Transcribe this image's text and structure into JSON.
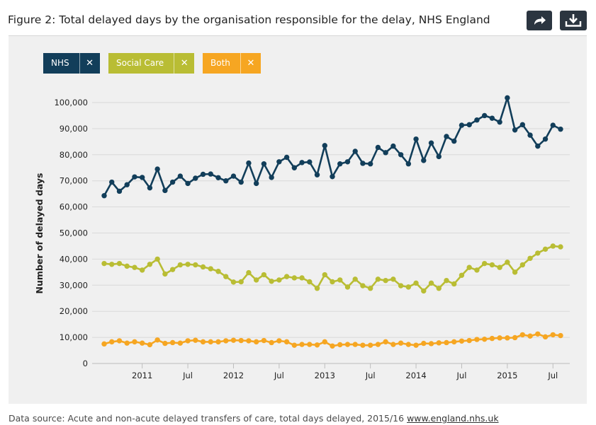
{
  "header": {
    "title": "Figure 2: Total delayed days by the organisation responsible for the delay, NHS England",
    "share_icon": "share-arrow-icon",
    "download_icon": "download-icon"
  },
  "legend": [
    {
      "label": "NHS",
      "remove": "✕",
      "color": "#123e5a"
    },
    {
      "label": "Social Care",
      "remove": "✕",
      "color": "#b9bd34"
    },
    {
      "label": "Both",
      "remove": "✕",
      "color": "#f6a622"
    }
  ],
  "chart_data": {
    "type": "line",
    "ylabel": "Number of delayed days",
    "ylim": [
      0,
      100000
    ],
    "yticks": [
      0,
      10000,
      20000,
      30000,
      40000,
      50000,
      60000,
      70000,
      80000,
      90000,
      100000
    ],
    "ytick_labels": [
      "0",
      "10,000",
      "20,000",
      "30,000",
      "40,000",
      "50,000",
      "60,000",
      "70,000",
      "80,000",
      "90,000",
      "100,000"
    ],
    "x_start": "Aug 2010",
    "x_end": "Aug 2015",
    "xticks": [
      {
        "label": "2011",
        "index": 5
      },
      {
        "label": "Jul",
        "index": 11
      },
      {
        "label": "2012",
        "index": 17
      },
      {
        "label": "Jul",
        "index": 23
      },
      {
        "label": "2013",
        "index": 29
      },
      {
        "label": "Jul",
        "index": 35
      },
      {
        "label": "2014",
        "index": 41
      },
      {
        "label": "Jul",
        "index": 47
      },
      {
        "label": "2015",
        "index": 53
      },
      {
        "label": "Jul",
        "index": 59
      }
    ],
    "series": [
      {
        "name": "NHS",
        "color": "#123e5a",
        "values": [
          64300,
          69500,
          66000,
          68500,
          71500,
          71300,
          67300,
          74500,
          66300,
          69500,
          71800,
          69000,
          71000,
          72500,
          72600,
          71200,
          70000,
          71800,
          69500,
          76800,
          69000,
          76500,
          71300,
          77300,
          79000,
          75000,
          77000,
          77200,
          72300,
          83500,
          71600,
          76500,
          77300,
          81300,
          76700,
          76500,
          82800,
          80800,
          83300,
          80000,
          76500,
          86000,
          77800,
          84500,
          79300,
          87000,
          85200,
          91300,
          91500,
          93300,
          95000,
          94000,
          92500,
          101800,
          89500,
          91500,
          87500,
          83300,
          86000,
          91300,
          89800
        ]
      },
      {
        "name": "Social Care",
        "color": "#b9bd34",
        "values": [
          38300,
          38000,
          38300,
          37300,
          36800,
          35800,
          38000,
          40000,
          34300,
          36000,
          37800,
          38000,
          37800,
          37000,
          36300,
          35300,
          33300,
          31200,
          31300,
          34800,
          32000,
          34000,
          31500,
          32000,
          33300,
          32800,
          32800,
          31300,
          28800,
          34000,
          31300,
          32000,
          29300,
          32300,
          29800,
          28800,
          32300,
          31800,
          32300,
          29800,
          29300,
          30800,
          27800,
          30800,
          28800,
          31800,
          30500,
          33800,
          36800,
          35800,
          38300,
          37800,
          36800,
          38800,
          35000,
          37800,
          40300,
          42300,
          43800,
          45000,
          44700
        ]
      },
      {
        "name": "Both",
        "color": "#f6a622",
        "values": [
          7500,
          8300,
          8700,
          7800,
          8300,
          7800,
          7200,
          9000,
          7700,
          8000,
          7800,
          8700,
          8900,
          8300,
          8300,
          8300,
          8700,
          8900,
          8800,
          8700,
          8300,
          8800,
          8000,
          8700,
          8300,
          7000,
          7300,
          7300,
          7100,
          8300,
          6700,
          7200,
          7300,
          7300,
          7000,
          7000,
          7300,
          8300,
          7300,
          7800,
          7300,
          7000,
          7700,
          7600,
          7900,
          8000,
          8300,
          8600,
          8800,
          9200,
          9300,
          9600,
          9800,
          9800,
          9900,
          11000,
          10500,
          11300,
          10200,
          11000,
          10700
        ]
      }
    ]
  },
  "footer": {
    "source_text": "Data source: Acute and non-acute delayed transfers of care, total days delayed, 2015/16",
    "link_text": "www.england.nhs.uk"
  }
}
